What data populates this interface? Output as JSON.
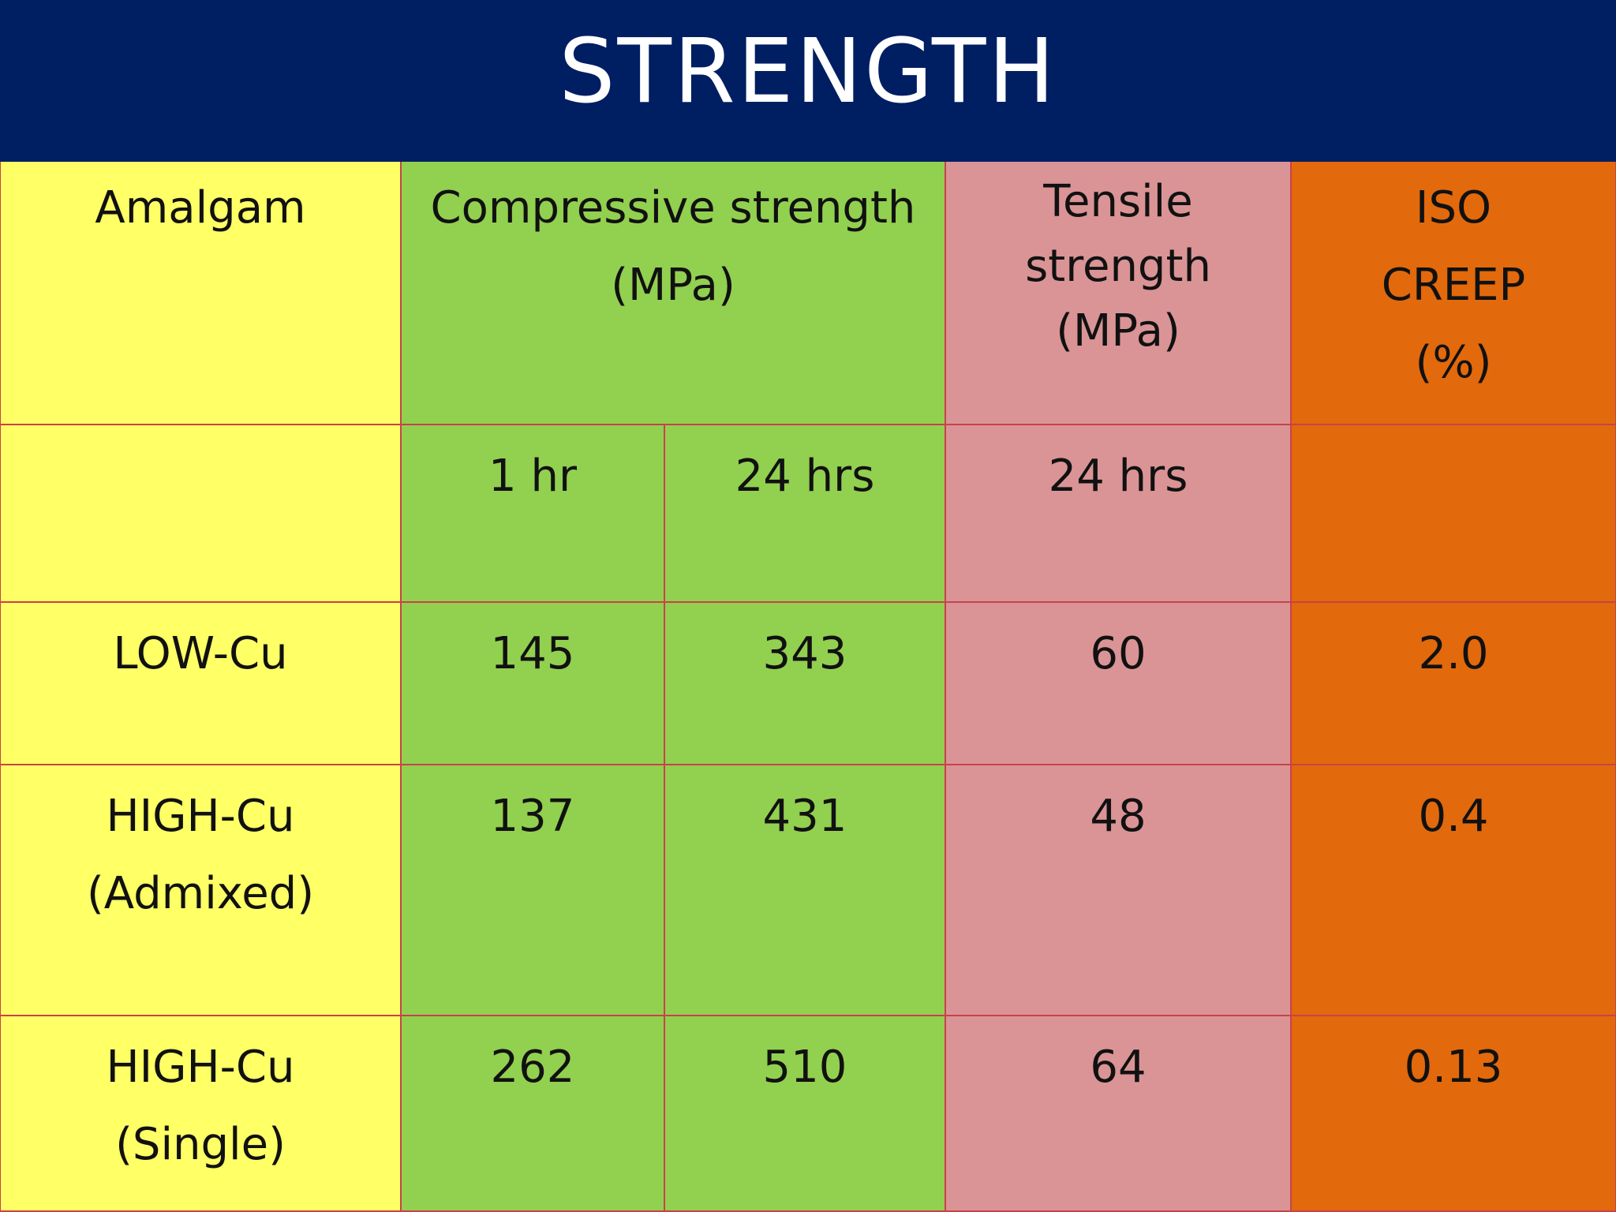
{
  "title": "STRENGTH",
  "headers": {
    "amalgam": "Amalgam",
    "compressive": [
      "Compressive strength",
      "(MPa)"
    ],
    "tensile": [
      "Tensile",
      "strength",
      "(MPa)"
    ],
    "iso_creep": [
      "ISO",
      "CREEP",
      "(%)"
    ]
  },
  "subheaders": {
    "compressive_1hr": "1 hr",
    "compressive_24hrs": "24 hrs",
    "tensile_24hrs": "24 hrs"
  },
  "rows": [
    {
      "amalgam": [
        "LOW-Cu"
      ],
      "comp_1hr": "145",
      "comp_24hrs": "343",
      "tensile": "60",
      "creep": "2.0"
    },
    {
      "amalgam": [
        "HIGH-Cu",
        "(Admixed)"
      ],
      "comp_1hr": "137",
      "comp_24hrs": "431",
      "tensile": "48",
      "creep": "0.4"
    },
    {
      "amalgam": [
        "HIGH-Cu",
        "(Single)"
      ],
      "comp_1hr": "262",
      "comp_24hrs": "510",
      "tensile": "64",
      "creep": "0.13"
    }
  ],
  "colors": {
    "header_bg": "#001e62",
    "amalgam_col": "#ffff66",
    "compressive_col": "#92d050",
    "tensile_col": "#da9496",
    "creep_col": "#e2690c",
    "grid_line": "#c8424a"
  }
}
